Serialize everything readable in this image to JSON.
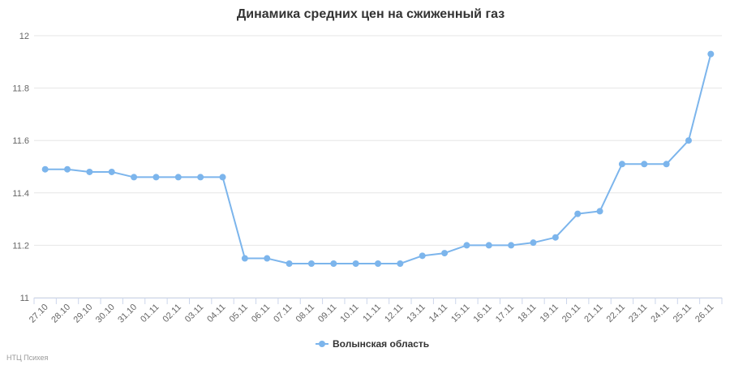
{
  "chart_data": {
    "type": "line",
    "title": "Динамика средних цен на сжиженный газ",
    "xlabel": "",
    "ylabel": "",
    "categories": [
      "27.10",
      "28.10",
      "29.10",
      "30.10",
      "31.10",
      "01.11",
      "02.11",
      "03.11",
      "04.11",
      "05.11",
      "06.11",
      "07.11",
      "08.11",
      "09.11",
      "10.11",
      "11.11",
      "12.11",
      "13.11",
      "14.11",
      "15.11",
      "16.11",
      "17.11",
      "18.11",
      "19.11",
      "20.11",
      "21.11",
      "22.11",
      "23.11",
      "24.11",
      "25.11",
      "26.11"
    ],
    "y_ticks": [
      "11",
      "11.2",
      "11.4",
      "11.6",
      "11.8",
      "12"
    ],
    "ylim": [
      11,
      12
    ],
    "grid": true,
    "legend_position": "bottom-center",
    "series": [
      {
        "name": "Волынская область",
        "color": "#7cb5ec",
        "values": [
          11.49,
          11.49,
          11.48,
          11.48,
          11.46,
          11.46,
          11.46,
          11.46,
          11.46,
          11.15,
          11.15,
          11.13,
          11.13,
          11.13,
          11.13,
          11.13,
          11.13,
          11.16,
          11.17,
          11.2,
          11.2,
          11.2,
          11.21,
          11.23,
          11.32,
          11.33,
          11.51,
          11.51,
          11.51,
          11.6,
          11.93
        ]
      }
    ]
  },
  "credit": "НТЦ Психея"
}
